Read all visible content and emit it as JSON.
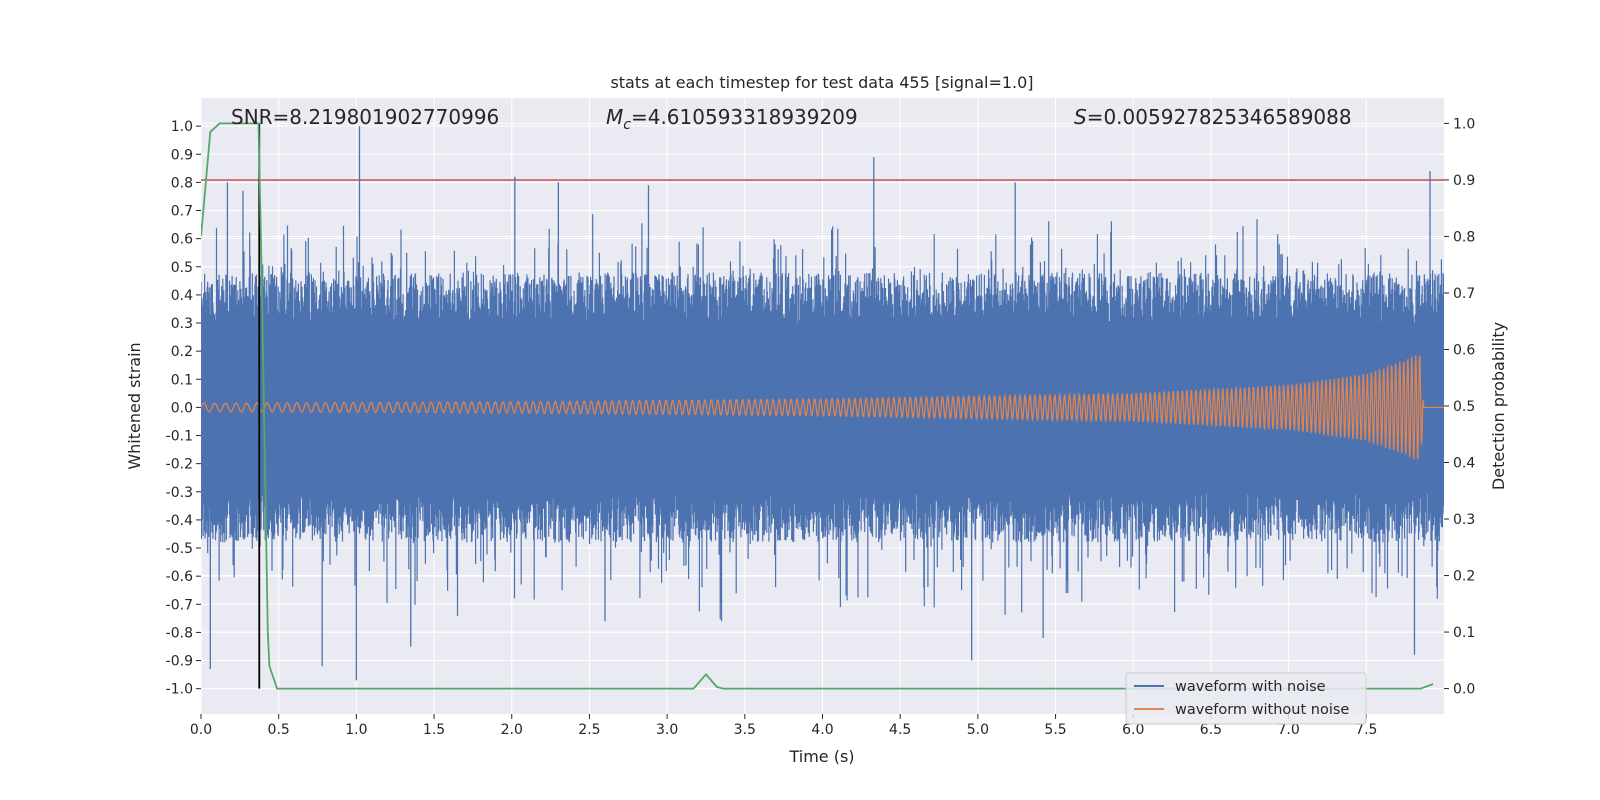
{
  "chart_data": {
    "type": "line",
    "title": "stats at each timestep for test data 455 [signal=1.0]",
    "xlabel": "Time (s)",
    "ylabel": "Whitened strain",
    "y2label": "Detection probability",
    "xlim": [
      0.0,
      8.0
    ],
    "ylim": [
      -1.09,
      1.1
    ],
    "y2lim": [
      -0.045,
      1.045
    ],
    "xticks": [
      0.0,
      0.5,
      1.0,
      1.5,
      2.0,
      2.5,
      3.0,
      3.5,
      4.0,
      4.5,
      5.0,
      5.5,
      6.0,
      6.5,
      7.0,
      7.5
    ],
    "xtick_labels": [
      "0.0",
      "0.5",
      "1.0",
      "1.5",
      "2.0",
      "2.5",
      "3.0",
      "3.5",
      "4.0",
      "4.5",
      "5.0",
      "5.5",
      "6.0",
      "6.5",
      "7.0",
      "7.5"
    ],
    "yticks": [
      1.0,
      0.9,
      0.8,
      0.7,
      0.6,
      0.5,
      0.4,
      0.3,
      0.2,
      0.1,
      0.0,
      -0.1,
      -0.2,
      -0.3,
      -0.4,
      -0.5,
      -0.6,
      -0.7,
      -0.8,
      -0.9,
      -1.0
    ],
    "ytick_labels": [
      "1.0",
      "0.9",
      "0.8",
      "0.7",
      "0.6",
      "0.5",
      "0.4",
      "0.3",
      "0.2",
      "0.1",
      "0.0",
      "-0.1",
      "-0.2",
      "-0.3",
      "-0.4",
      "-0.5",
      "-0.6",
      "-0.7",
      "-0.8",
      "-0.9",
      "-1.0"
    ],
    "y2ticks": [
      1.0,
      0.9,
      0.8,
      0.7,
      0.6,
      0.5,
      0.4,
      0.3,
      0.2,
      0.1,
      0.0
    ],
    "y2tick_labels": [
      "1.0",
      "0.9",
      "0.8",
      "0.7",
      "0.6",
      "0.5",
      "0.4",
      "0.3",
      "0.2",
      "0.1",
      "0.0"
    ],
    "grid": true,
    "legend_position": "lower-right",
    "annotations": {
      "snr": "SNR=8.219801902770996",
      "mc_symbol": "M",
      "mc_subscript": "c",
      "mc_value": "=4.610593318939209",
      "s_symbol": "S",
      "s_value": "=0.005927825346589088"
    },
    "threshold": {
      "value": 0.9,
      "axis": "y2",
      "color": "#c44e52"
    },
    "marker_time": 0.375,
    "series": [
      {
        "name": "waveform with noise",
        "color": "#4c72b0",
        "axis": "y",
        "description": "dense noisy whitened strain from 0.0 to 8.0 s",
        "envelope_typical": [
          -0.4,
          0.4
        ],
        "spikes": [
          {
            "x": 0.06,
            "y": -0.93
          },
          {
            "x": 0.17,
            "y": 0.8
          },
          {
            "x": 0.27,
            "y": 0.77
          },
          {
            "x": 0.78,
            "y": -0.92
          },
          {
            "x": 1.02,
            "y": 1.0
          },
          {
            "x": 1.0,
            "y": -0.97
          },
          {
            "x": 1.35,
            "y": -0.85
          },
          {
            "x": 2.02,
            "y": 0.82
          },
          {
            "x": 2.3,
            "y": 0.8
          },
          {
            "x": 2.6,
            "y": -0.76
          },
          {
            "x": 2.88,
            "y": 0.79
          },
          {
            "x": 3.35,
            "y": -0.76
          },
          {
            "x": 4.33,
            "y": 0.89
          },
          {
            "x": 4.96,
            "y": -0.9
          },
          {
            "x": 5.24,
            "y": 0.8
          },
          {
            "x": 5.42,
            "y": -0.82
          },
          {
            "x": 7.81,
            "y": -0.88
          },
          {
            "x": 7.91,
            "y": 0.84
          }
        ]
      },
      {
        "name": "waveform without noise",
        "color": "#dd8452",
        "axis": "y",
        "description": "chirp growing in amplitude, merger near 7.85 s",
        "amplitude_points": [
          [
            0.0,
            0.015
          ],
          [
            2.0,
            0.02
          ],
          [
            4.0,
            0.03
          ],
          [
            6.0,
            0.05
          ],
          [
            7.0,
            0.08
          ],
          [
            7.5,
            0.12
          ],
          [
            7.75,
            0.17
          ],
          [
            7.83,
            0.19
          ],
          [
            7.85,
            0.19
          ],
          [
            7.87,
            0.0
          ]
        ]
      },
      {
        "name": "detection probability",
        "color": "#55a868",
        "axis": "y2",
        "x": [
          0.0,
          0.06,
          0.12,
          0.24,
          0.37,
          0.39,
          0.43,
          0.44,
          0.49,
          3.17,
          3.25,
          3.32,
          3.36,
          7.85,
          7.93
        ],
        "y": [
          0.8,
          0.985,
          1.0,
          1.0,
          1.0,
          0.74,
          0.1,
          0.04,
          0.0,
          0.0,
          0.025,
          0.003,
          0.0,
          0.0,
          0.008
        ]
      }
    ],
    "legend": [
      "waveform with noise",
      "waveform without noise"
    ]
  }
}
